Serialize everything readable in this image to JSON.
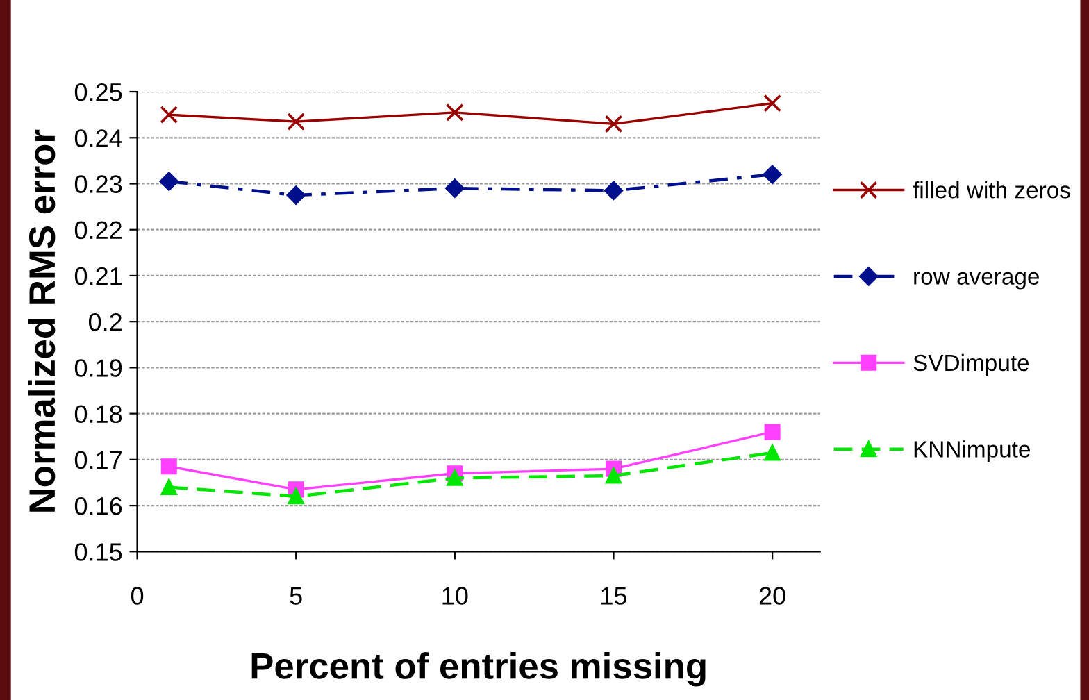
{
  "chart_data": {
    "type": "line",
    "xlabel": "Percent of entries missing",
    "ylabel": "Normalized RMS error",
    "x": [
      1,
      5,
      10,
      15,
      20
    ],
    "series": [
      {
        "name": "filled with zeros",
        "color": "#990000",
        "marker": "cross",
        "line_style": "solid",
        "values": [
          0.245,
          0.2435,
          0.2455,
          0.243,
          0.2475
        ]
      },
      {
        "name": "row average",
        "color": "#000f8c",
        "marker": "diamond",
        "line_style": "dashdot",
        "values": [
          0.2305,
          0.2275,
          0.229,
          0.2285,
          0.232
        ]
      },
      {
        "name": "SVDimpute",
        "color": "#ff40ff",
        "marker": "square",
        "line_style": "solid",
        "values": [
          0.1685,
          0.1635,
          0.167,
          0.168,
          0.176
        ]
      },
      {
        "name": "KNNimpute",
        "color": "#00e600",
        "marker": "triangle",
        "line_style": "dashed",
        "values": [
          0.164,
          0.162,
          0.166,
          0.1665,
          0.1715
        ]
      }
    ],
    "xlim": [
      0,
      21.5
    ],
    "xticks": [
      0,
      5,
      10,
      15,
      20
    ],
    "ylim": [
      0.15,
      0.25
    ],
    "yticks": [
      {
        "value": 0.15,
        "label": "0.15"
      },
      {
        "value": 0.16,
        "label": "0.16"
      },
      {
        "value": 0.17,
        "label": "0.17"
      },
      {
        "value": 0.18,
        "label": "0.18"
      },
      {
        "value": 0.19,
        "label": "0.19"
      },
      {
        "value": 0.2,
        "label": "0.2"
      },
      {
        "value": 0.21,
        "label": "0.21"
      },
      {
        "value": 0.22,
        "label": "0.22"
      },
      {
        "value": 0.23,
        "label": "0.23"
      },
      {
        "value": 0.24,
        "label": "0.24"
      },
      {
        "value": 0.25,
        "label": "0.25"
      }
    ],
    "grid": "y",
    "legend": "right"
  }
}
